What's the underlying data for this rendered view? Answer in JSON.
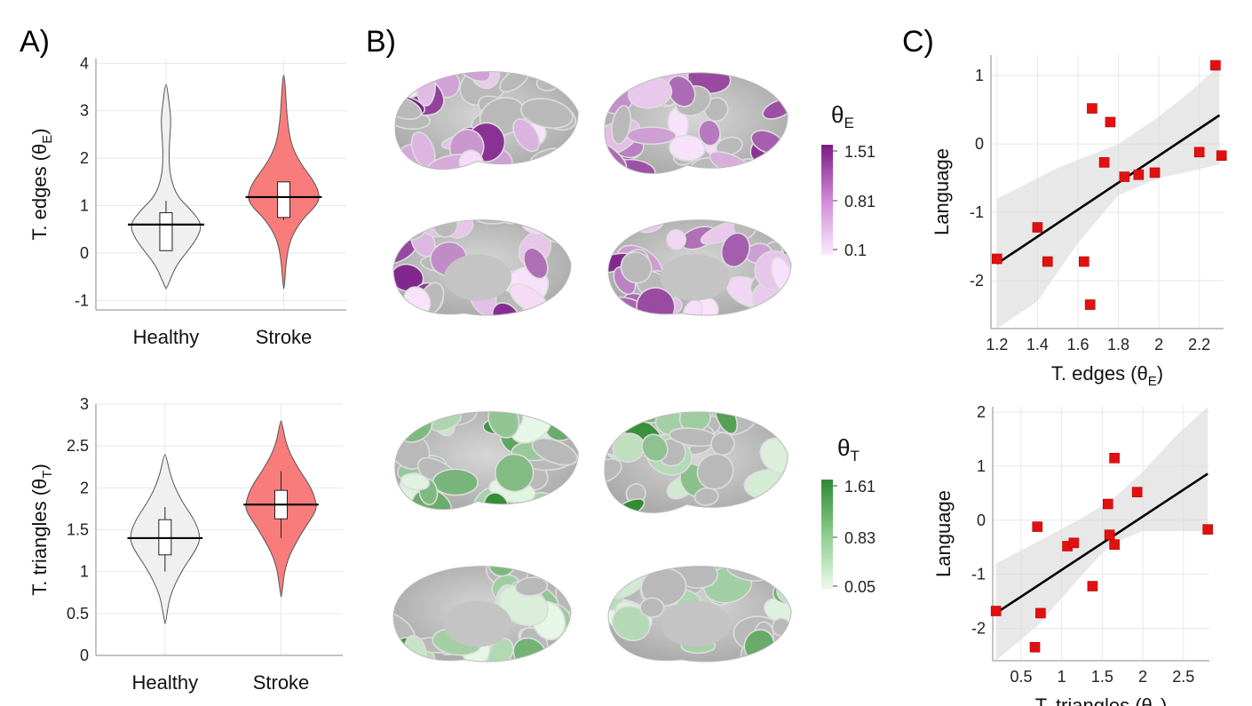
{
  "panels": {
    "a_label": "A)",
    "b_label": "B)",
    "c_label": "C)"
  },
  "colors": {
    "healthy_fill": "#f0f0f0",
    "stroke_fill": "#f97c7c",
    "edges_cmap_high": "#7a1a86",
    "edges_cmap_low": "#f9e3fb",
    "triangles_cmap_high": "#2f8a32",
    "triangles_cmap_low": "#e8f7e8",
    "scatter_marker": "#e31010",
    "brain_gray": "#b9b9b9"
  },
  "colorbars": [
    {
      "title_sym": "θ",
      "title_sub": "E",
      "max": "1.51",
      "mid": "0.81",
      "min": "0.1"
    },
    {
      "title_sym": "θ",
      "title_sub": "T",
      "max": "1.61",
      "mid": "0.83",
      "min": "0.05"
    }
  ],
  "chart_data": [
    {
      "type": "violin",
      "panel": "A-top",
      "ylabel_main": "T. edges (θ",
      "ylabel_sub": "E",
      "ylabel_end": ")",
      "ylim": [
        -1.2,
        4.1
      ],
      "yticks": [
        -1,
        0,
        1,
        2,
        3,
        4
      ],
      "categories": [
        "Healthy",
        "Stroke"
      ],
      "groups": [
        {
          "name": "Healthy",
          "median": 0.6,
          "q1": 0.05,
          "q3": 0.85,
          "whisker_low": 0.05,
          "whisker_high": 1.1,
          "min": -0.75,
          "max": 3.55,
          "density": [
            [
              -0.75,
              0.02
            ],
            [
              -0.3,
              0.25
            ],
            [
              0.0,
              0.55
            ],
            [
              0.3,
              0.85
            ],
            [
              0.6,
              1.0
            ],
            [
              0.9,
              0.7
            ],
            [
              1.2,
              0.3
            ],
            [
              1.6,
              0.12
            ],
            [
              2.0,
              0.08
            ],
            [
              2.4,
              0.1
            ],
            [
              2.8,
              0.14
            ],
            [
              3.2,
              0.08
            ],
            [
              3.55,
              0.02
            ]
          ]
        },
        {
          "name": "Stroke",
          "median": 1.18,
          "q1": 0.75,
          "q3": 1.5,
          "whisker_low": 0.7,
          "whisker_high": 1.5,
          "min": -0.75,
          "max": 3.75,
          "density": [
            [
              -0.75,
              0.02
            ],
            [
              -0.2,
              0.06
            ],
            [
              0.3,
              0.18
            ],
            [
              0.7,
              0.5
            ],
            [
              1.0,
              0.9
            ],
            [
              1.2,
              1.0
            ],
            [
              1.5,
              0.85
            ],
            [
              1.9,
              0.45
            ],
            [
              2.3,
              0.2
            ],
            [
              2.8,
              0.1
            ],
            [
              3.3,
              0.06
            ],
            [
              3.75,
              0.02
            ]
          ]
        }
      ]
    },
    {
      "type": "violin",
      "panel": "A-bottom",
      "ylabel_main": "T. triangles (θ",
      "ylabel_sub": "T",
      "ylabel_end": ")",
      "ylim": [
        0,
        3
      ],
      "yticks": [
        0,
        0.5,
        1,
        1.5,
        2,
        2.5,
        3
      ],
      "categories": [
        "Healthy",
        "Stroke"
      ],
      "groups": [
        {
          "name": "Healthy",
          "median": 1.4,
          "q1": 1.2,
          "q3": 1.62,
          "whisker_low": 1.0,
          "whisker_high": 1.77,
          "min": 0.38,
          "max": 2.4,
          "density": [
            [
              0.38,
              0.02
            ],
            [
              0.7,
              0.12
            ],
            [
              1.0,
              0.45
            ],
            [
              1.25,
              0.85
            ],
            [
              1.4,
              1.0
            ],
            [
              1.6,
              0.85
            ],
            [
              1.85,
              0.45
            ],
            [
              2.1,
              0.18
            ],
            [
              2.4,
              0.02
            ]
          ]
        },
        {
          "name": "Stroke",
          "median": 1.8,
          "q1": 1.63,
          "q3": 1.97,
          "whisker_low": 1.4,
          "whisker_high": 2.2,
          "min": 0.7,
          "max": 2.8,
          "density": [
            [
              0.7,
              0.02
            ],
            [
              1.1,
              0.12
            ],
            [
              1.45,
              0.55
            ],
            [
              1.7,
              0.95
            ],
            [
              1.8,
              1.0
            ],
            [
              2.0,
              0.85
            ],
            [
              2.25,
              0.45
            ],
            [
              2.5,
              0.15
            ],
            [
              2.8,
              0.02
            ]
          ]
        }
      ]
    },
    {
      "type": "scatter",
      "panel": "C-top",
      "xlabel_main": "T. edges (θ",
      "xlabel_sub": "E",
      "xlabel_end": ")",
      "ylabel": "Language",
      "xlim": [
        1.17,
        2.32
      ],
      "ylim": [
        -2.7,
        1.3
      ],
      "xticks": [
        1.2,
        1.4,
        1.6,
        1.8,
        2,
        2.2
      ],
      "yticks": [
        -2,
        -1,
        0,
        1
      ],
      "points": [
        [
          1.2,
          -1.68
        ],
        [
          1.4,
          -1.22
        ],
        [
          1.45,
          -1.72
        ],
        [
          1.63,
          -1.72
        ],
        [
          1.66,
          -2.35
        ],
        [
          1.67,
          0.52
        ],
        [
          1.73,
          -0.27
        ],
        [
          1.76,
          0.32
        ],
        [
          1.83,
          -0.48
        ],
        [
          1.9,
          -0.45
        ],
        [
          1.98,
          -0.42
        ],
        [
          2.2,
          -0.12
        ],
        [
          2.28,
          1.15
        ],
        [
          2.31,
          -0.17
        ]
      ],
      "fit": [
        [
          1.2,
          -1.75
        ],
        [
          2.3,
          0.42
        ]
      ],
      "ci_upper": [
        [
          1.2,
          -0.8
        ],
        [
          1.5,
          -0.35
        ],
        [
          1.8,
          0.0
        ],
        [
          2.0,
          0.4
        ],
        [
          2.15,
          0.75
        ],
        [
          2.3,
          1.15
        ]
      ],
      "ci_lower": [
        [
          1.2,
          -2.75
        ],
        [
          1.4,
          -2.3
        ],
        [
          1.6,
          -1.45
        ],
        [
          1.8,
          -0.75
        ],
        [
          2.0,
          -0.5
        ],
        [
          2.3,
          -0.3
        ]
      ]
    },
    {
      "type": "scatter",
      "panel": "C-bottom",
      "xlabel_main": "T. triangles (θ",
      "xlabel_sub": "T",
      "xlabel_end": ")",
      "ylabel": "Language",
      "xlim": [
        0.15,
        2.82
      ],
      "ylim": [
        -2.6,
        2.1
      ],
      "xticks": [
        0.5,
        1,
        1.5,
        2,
        2.5
      ],
      "yticks": [
        -2,
        -1,
        0,
        1,
        2
      ],
      "points": [
        [
          0.19,
          -1.68
        ],
        [
          0.67,
          -2.35
        ],
        [
          0.7,
          -0.12
        ],
        [
          0.74,
          -1.72
        ],
        [
          1.07,
          -0.48
        ],
        [
          1.15,
          -0.42
        ],
        [
          1.38,
          -1.22
        ],
        [
          1.57,
          0.3
        ],
        [
          1.59,
          -0.27
        ],
        [
          1.65,
          1.15
        ],
        [
          1.65,
          -0.45
        ],
        [
          1.93,
          0.52
        ],
        [
          2.8,
          -0.17
        ]
      ],
      "fit": [
        [
          0.19,
          -1.72
        ],
        [
          2.8,
          0.86
        ]
      ],
      "ci_upper": [
        [
          0.19,
          -0.8
        ],
        [
          0.7,
          -0.4
        ],
        [
          1.2,
          0.0
        ],
        [
          1.6,
          0.35
        ],
        [
          2.0,
          0.9
        ],
        [
          2.4,
          1.55
        ],
        [
          2.8,
          2.1
        ]
      ],
      "ci_lower": [
        [
          0.19,
          -2.65
        ],
        [
          0.7,
          -1.95
        ],
        [
          1.2,
          -1.1
        ],
        [
          1.6,
          -0.45
        ],
        [
          2.0,
          -0.2
        ],
        [
          2.4,
          -0.2
        ],
        [
          2.8,
          -0.2
        ]
      ]
    }
  ]
}
